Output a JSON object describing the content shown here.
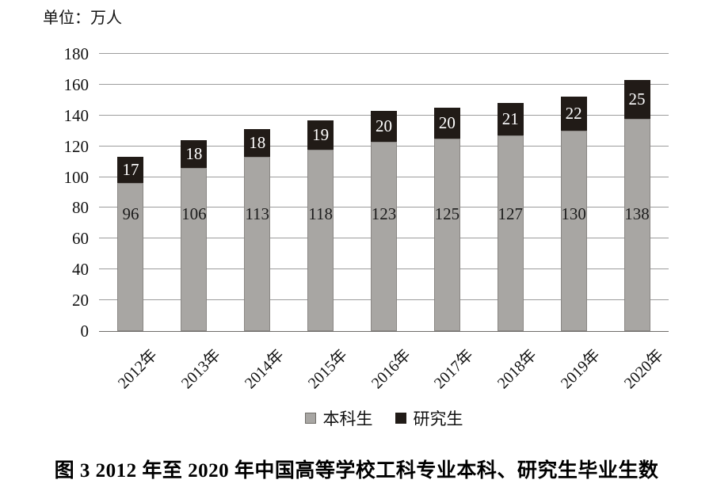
{
  "unit_label": "单位：万人",
  "caption": "图 3  2012 年至 2020 年中国高等学校工科专业本科、研究生毕业生数",
  "colors": {
    "undergrad_bar": "#a8a6a3",
    "undergrad_bar_border": "#8a8784",
    "grad_bar": "#211b17",
    "gridline": "#9c9c9c",
    "grad_label_text": "#ffffff",
    "under_label_text": "#1c1c1c"
  },
  "chart_data": {
    "type": "bar",
    "stacked": true,
    "title": "图 3  2012 年至 2020 年中国高等学校工科专业本科、研究生毕业生数",
    "ylabel": "单位：万人",
    "categories": [
      "2012年",
      "2013年",
      "2014年",
      "2015年",
      "2016年",
      "2017年",
      "2018年",
      "2019年",
      "2020年"
    ],
    "series": [
      {
        "name": "本科生",
        "color": "#a8a6a3",
        "values": [
          96,
          106,
          113,
          118,
          123,
          125,
          127,
          130,
          138
        ]
      },
      {
        "name": "研究生",
        "color": "#211b17",
        "values": [
          17,
          18,
          18,
          19,
          20,
          20,
          21,
          22,
          25
        ]
      }
    ],
    "ylim": [
      0,
      180
    ],
    "ytick_step": 20,
    "yticks": [
      180,
      160,
      140,
      120,
      100,
      80,
      60,
      40,
      20,
      0
    ],
    "grid": true,
    "legend_position": "bottom"
  }
}
